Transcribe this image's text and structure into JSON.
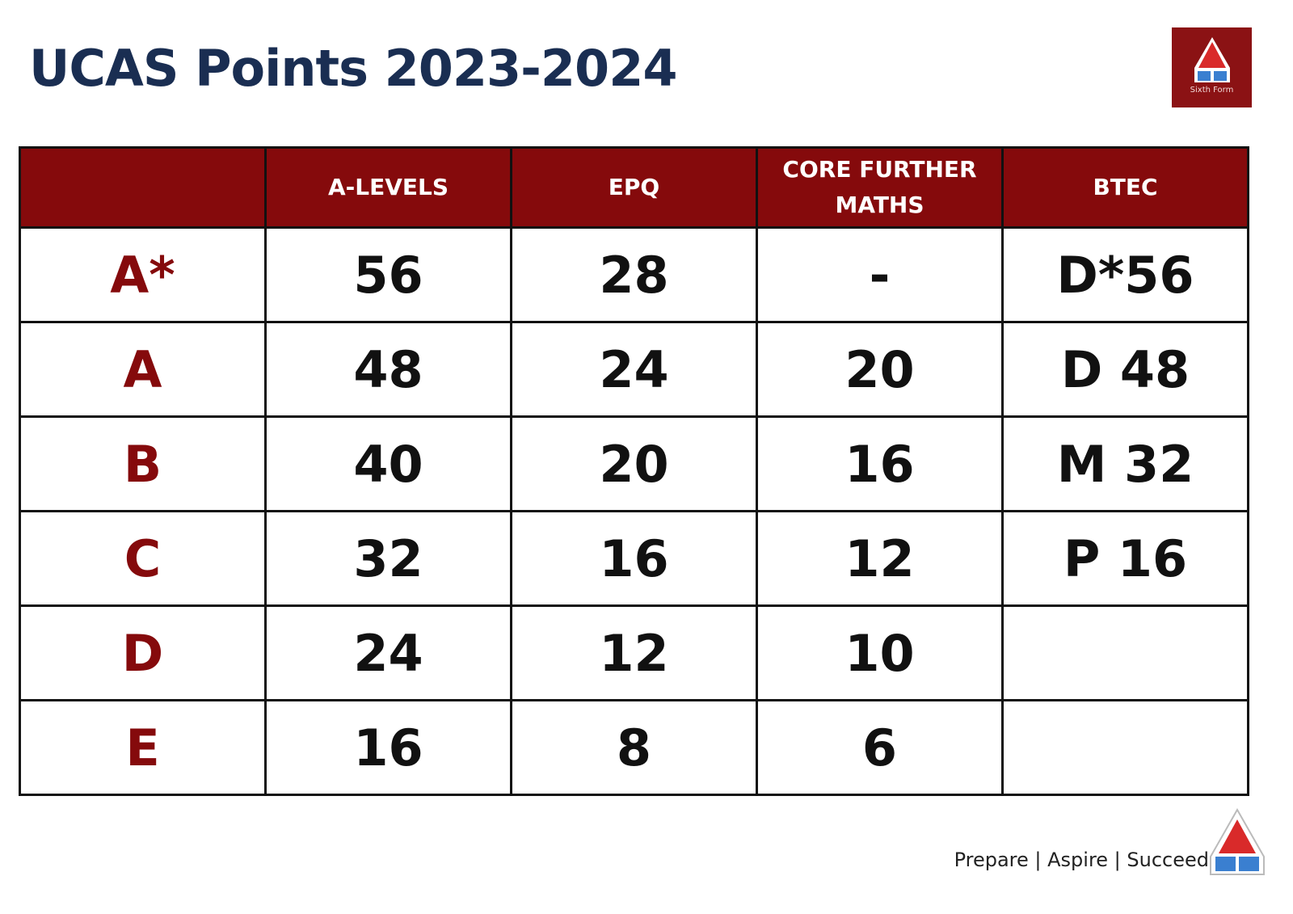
{
  "header": {
    "title": "UCAS Points 2023-2024",
    "logo_text": "Sixth Form"
  },
  "table": {
    "columns": [
      "A-LEVELS",
      "EPQ",
      "CORE FURTHER MATHS",
      "BTEC"
    ],
    "rows": [
      {
        "grade": "A*",
        "cells": [
          56,
          28,
          "-",
          "D*56"
        ]
      },
      {
        "grade": "A",
        "cells": [
          48,
          24,
          20,
          "D 48"
        ]
      },
      {
        "grade": "B",
        "cells": [
          40,
          20,
          16,
          "M 32"
        ]
      },
      {
        "grade": "C",
        "cells": [
          32,
          16,
          12,
          "P 16"
        ]
      },
      {
        "grade": "D",
        "cells": [
          24,
          12,
          10
        ]
      },
      {
        "grade": "E",
        "cells": [
          16,
          8,
          6
        ]
      }
    ]
  },
  "footer": {
    "tagline": "Prepare | Aspire | Succeed"
  }
}
